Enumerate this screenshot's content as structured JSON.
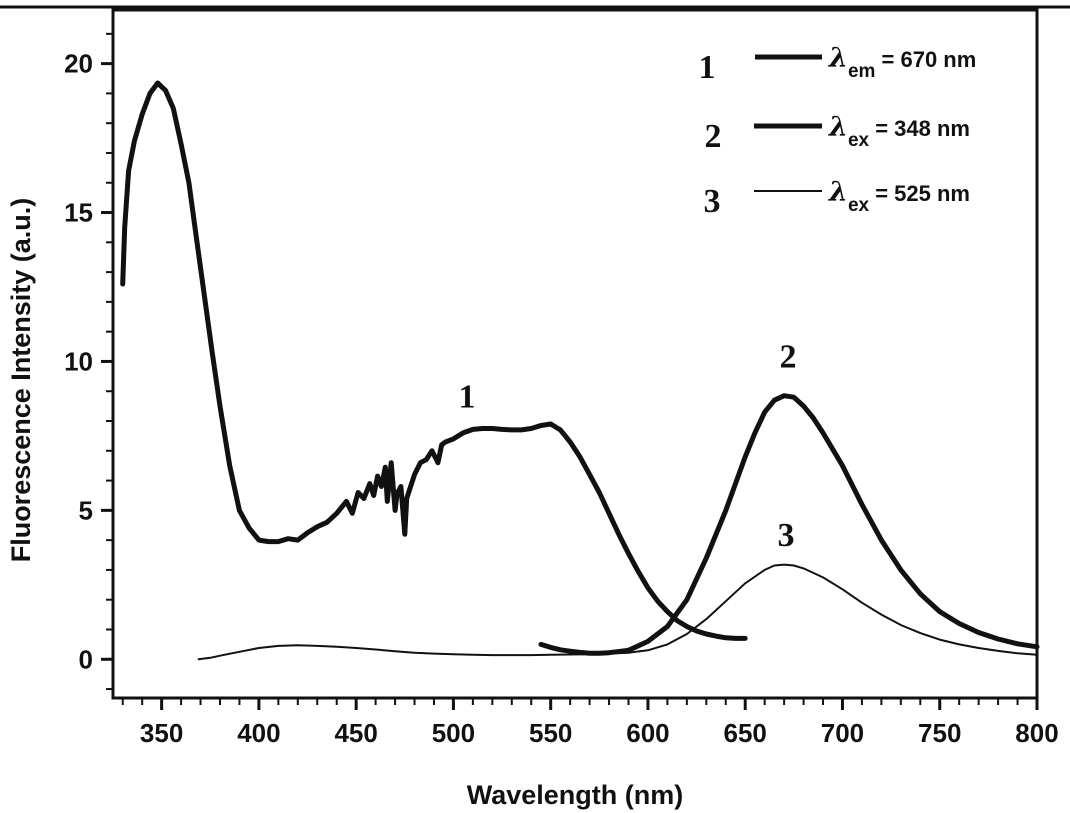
{
  "chart_data": {
    "type": "line",
    "title": "",
    "xlabel": "Wavelength (nm)",
    "ylabel": "Fluorescence Intensity (a.u.)",
    "xlim": [
      325,
      800
    ],
    "ylim": [
      -1.3,
      21.8
    ],
    "xticks": [
      350,
      400,
      450,
      500,
      550,
      600,
      650,
      700,
      750,
      800
    ],
    "yticks": [
      0,
      5,
      10,
      15,
      20
    ],
    "grid": false,
    "legend_position": "top-right",
    "series": [
      {
        "name": "1",
        "legend_prefix": "λ",
        "legend_sub": "em",
        "legend_value": " = 670 nm",
        "stroke": "#111111",
        "x": [
          330,
          331,
          333,
          336,
          340,
          344,
          348,
          352,
          356,
          360,
          364,
          368,
          372,
          376,
          380,
          385,
          390,
          395,
          400,
          405,
          410,
          415,
          420,
          425,
          430,
          435,
          440,
          445,
          448,
          451,
          454,
          457,
          459,
          461,
          463,
          465,
          466,
          468,
          470,
          471,
          473,
          475,
          476,
          478,
          480,
          483,
          486,
          489,
          492,
          494,
          496,
          500,
          505,
          510,
          515,
          520,
          525,
          530,
          535,
          540,
          545,
          550,
          555,
          560,
          565,
          570,
          575,
          580,
          585,
          590,
          595,
          600,
          605,
          610,
          615,
          620,
          625,
          630,
          635,
          640,
          645,
          650
        ],
        "y": [
          12.6,
          14.5,
          16.4,
          17.4,
          18.3,
          19.0,
          19.35,
          19.1,
          18.5,
          17.3,
          16.0,
          14.1,
          12.2,
          10.3,
          8.5,
          6.5,
          5.0,
          4.4,
          4.0,
          3.95,
          3.95,
          4.05,
          4.0,
          4.25,
          4.45,
          4.6,
          4.9,
          5.3,
          4.9,
          5.6,
          5.4,
          5.9,
          5.5,
          6.15,
          5.8,
          6.45,
          5.3,
          6.6,
          5.0,
          5.55,
          5.8,
          4.2,
          5.4,
          5.8,
          6.2,
          6.6,
          6.7,
          7.0,
          6.6,
          7.2,
          7.3,
          7.4,
          7.6,
          7.72,
          7.75,
          7.75,
          7.72,
          7.7,
          7.7,
          7.75,
          7.85,
          7.9,
          7.7,
          7.3,
          6.8,
          6.2,
          5.6,
          4.9,
          4.2,
          3.55,
          2.95,
          2.4,
          1.95,
          1.6,
          1.3,
          1.1,
          0.95,
          0.85,
          0.78,
          0.72,
          0.7,
          0.7
        ]
      },
      {
        "name": "2",
        "legend_prefix": "λ",
        "legend_sub": "ex",
        "legend_value": " = 348 nm",
        "stroke": "#111111",
        "x": [
          545,
          550,
          555,
          560,
          565,
          570,
          575,
          580,
          590,
          600,
          610,
          620,
          630,
          640,
          650,
          655,
          660,
          665,
          670,
          675,
          680,
          685,
          690,
          700,
          710,
          720,
          730,
          740,
          750,
          760,
          770,
          780,
          790,
          800
        ],
        "y": [
          0.5,
          0.4,
          0.32,
          0.27,
          0.23,
          0.2,
          0.2,
          0.22,
          0.3,
          0.6,
          1.1,
          2.0,
          3.4,
          5.0,
          6.8,
          7.6,
          8.3,
          8.7,
          8.85,
          8.8,
          8.5,
          8.1,
          7.6,
          6.5,
          5.2,
          4.0,
          3.0,
          2.2,
          1.6,
          1.2,
          0.9,
          0.68,
          0.52,
          0.42
        ]
      },
      {
        "name": "3",
        "legend_prefix": "λ",
        "legend_sub": "ex",
        "legend_value": " = 525 nm",
        "stroke": "#111111",
        "x": [
          369,
          375,
          380,
          390,
          400,
          410,
          420,
          430,
          440,
          450,
          460,
          470,
          480,
          490,
          500,
          510,
          520,
          530,
          540,
          550,
          560,
          570,
          580,
          590,
          600,
          610,
          620,
          630,
          640,
          650,
          660,
          665,
          670,
          675,
          680,
          690,
          700,
          710,
          720,
          730,
          740,
          750,
          760,
          770,
          780,
          790,
          800
        ],
        "y": [
          0.0,
          0.05,
          0.12,
          0.25,
          0.38,
          0.45,
          0.47,
          0.45,
          0.42,
          0.38,
          0.33,
          0.27,
          0.22,
          0.19,
          0.17,
          0.15,
          0.14,
          0.14,
          0.14,
          0.15,
          0.16,
          0.17,
          0.19,
          0.22,
          0.3,
          0.5,
          0.85,
          1.35,
          1.95,
          2.55,
          3.0,
          3.15,
          3.18,
          3.15,
          3.05,
          2.75,
          2.35,
          1.9,
          1.5,
          1.15,
          0.88,
          0.66,
          0.5,
          0.38,
          0.28,
          0.2,
          0.15
        ]
      }
    ],
    "annotations": [
      {
        "text": "1",
        "x": 507,
        "y": 8.45
      },
      {
        "text": "2",
        "x": 672,
        "y": 9.8
      },
      {
        "text": "3",
        "x": 671,
        "y": 3.8
      }
    ]
  }
}
